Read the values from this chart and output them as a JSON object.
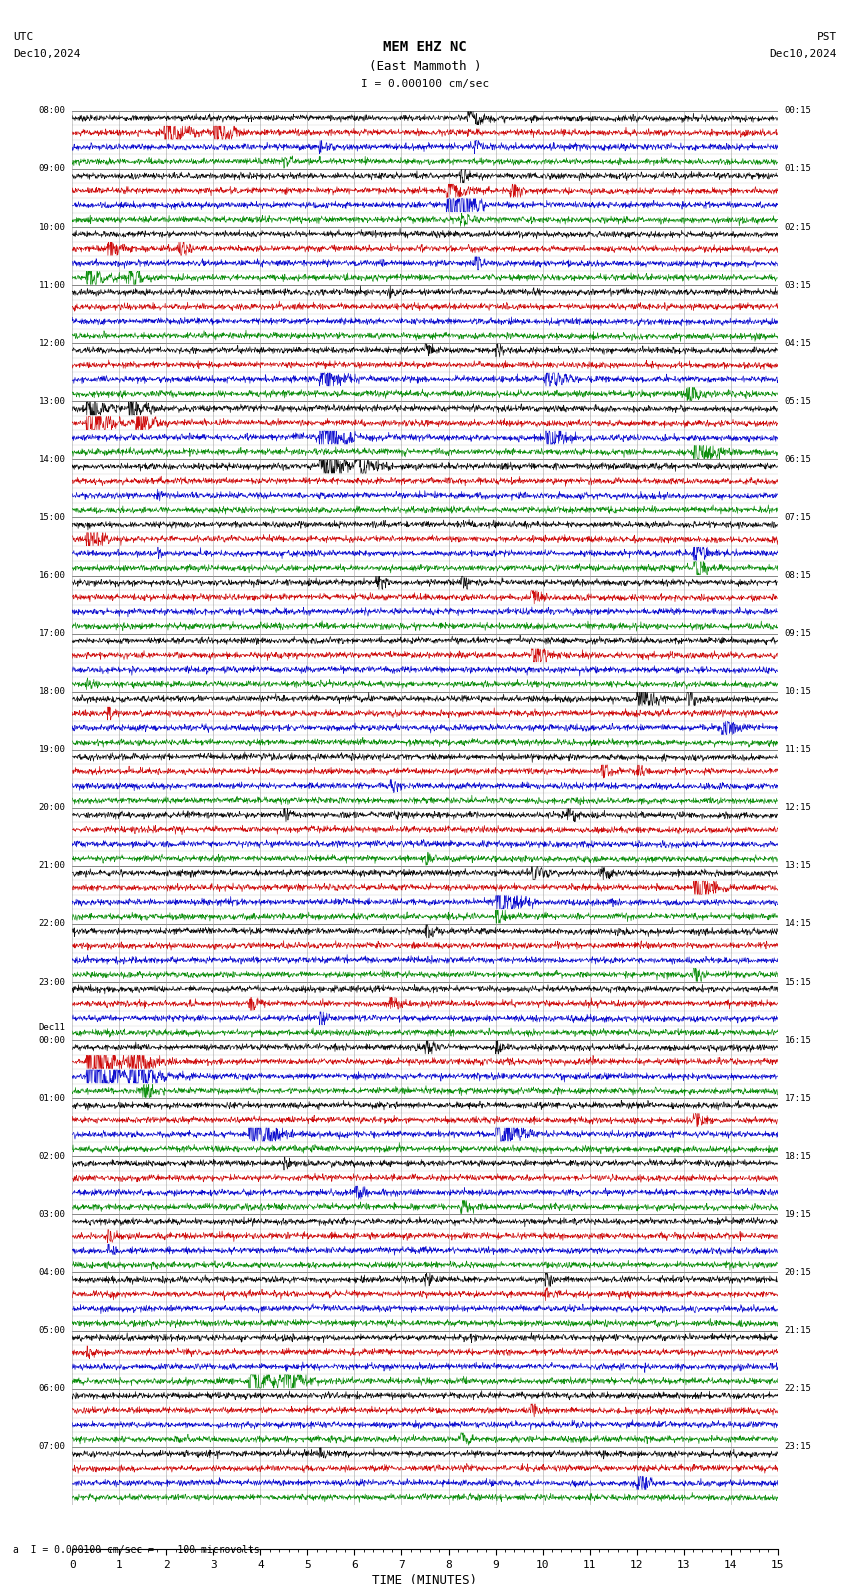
{
  "title_line1": "MEM EHZ NC",
  "title_line2": "(East Mammoth )",
  "scale_label": "I = 0.000100 cm/sec",
  "utc_label": "UTC",
  "utc_date": "Dec10,2024",
  "pst_label": "PST",
  "pst_date": "Dec10,2024",
  "bottom_label": "a  I = 0.000100 cm/sec =    100 microvolts",
  "xlabel": "TIME (MINUTES)",
  "bg_color": "#ffffff",
  "trace_colors": [
    "#000000",
    "#cc0000",
    "#0000cc",
    "#008800"
  ],
  "grid_color": "#999999",
  "left_labels_utc": [
    "08:00",
    "09:00",
    "10:00",
    "11:00",
    "12:00",
    "13:00",
    "14:00",
    "15:00",
    "16:00",
    "17:00",
    "18:00",
    "19:00",
    "20:00",
    "21:00",
    "22:00",
    "23:00",
    "Dec11\n00:00",
    "01:00",
    "02:00",
    "03:00",
    "04:00",
    "05:00",
    "06:00",
    "07:00"
  ],
  "right_labels_pst": [
    "00:15",
    "01:15",
    "02:15",
    "03:15",
    "04:15",
    "05:15",
    "06:15",
    "07:15",
    "08:15",
    "09:15",
    "10:15",
    "11:15",
    "12:15",
    "13:15",
    "14:15",
    "15:15",
    "16:15",
    "17:15",
    "18:15",
    "19:15",
    "20:15",
    "21:15",
    "22:15",
    "23:15"
  ],
  "xmin": 0,
  "xmax": 15,
  "xticks": [
    0,
    1,
    2,
    3,
    4,
    5,
    6,
    7,
    8,
    9,
    10,
    11,
    12,
    13,
    14,
    15
  ],
  "fig_width": 8.5,
  "fig_height": 15.84,
  "dpi": 100
}
